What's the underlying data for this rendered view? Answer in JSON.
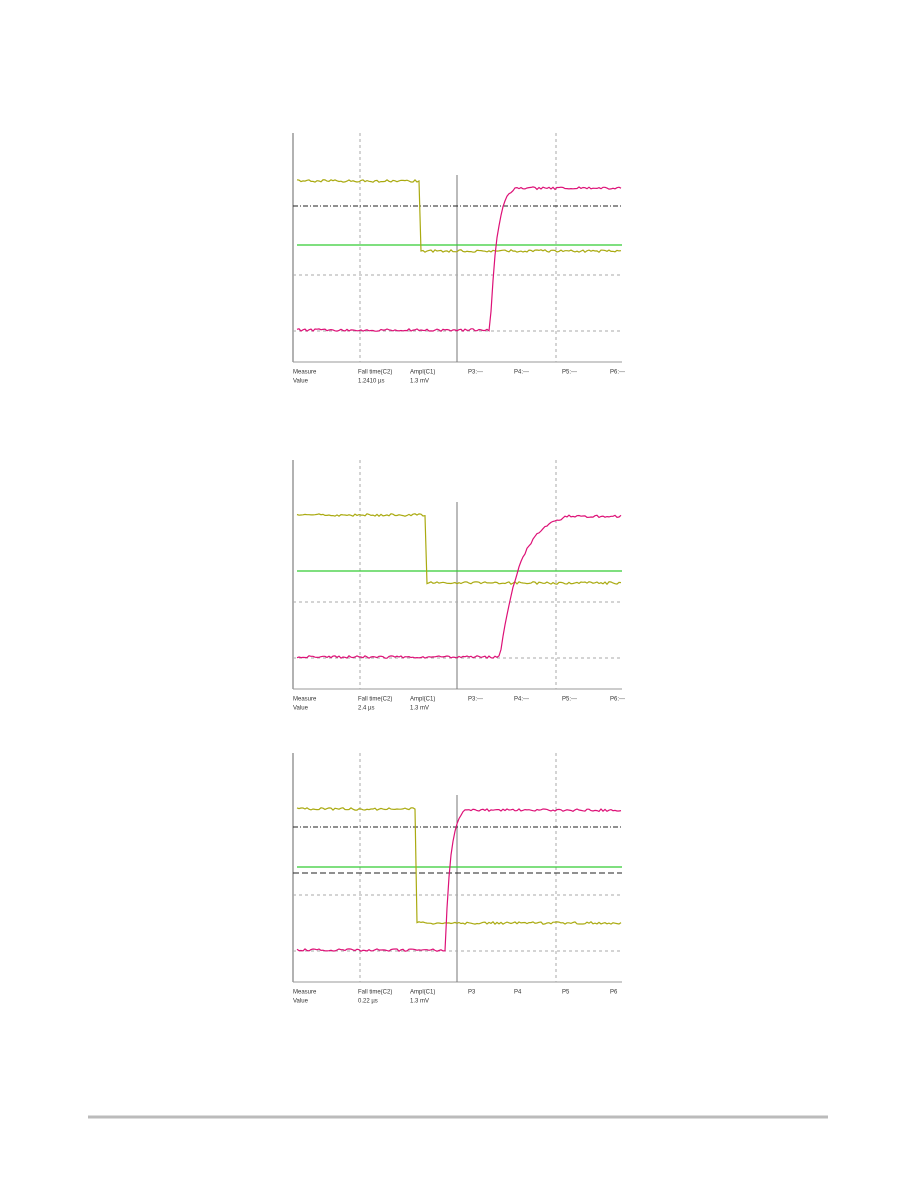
{
  "scopes": [
    {
      "measure": "Measure",
      "value": "Value",
      "columns": [
        "Fall time(C2)",
        "Ampl(C1)",
        "P3:---",
        "P4:---",
        "P5:---",
        "P6:---"
      ],
      "values": [
        "1.2410 µs",
        "1.3 mV"
      ]
    },
    {
      "measure": "Measure",
      "value": "Value",
      "columns": [
        "Fall time(C2)",
        "Ampl(C1)",
        "P3:---",
        "P4:---",
        "P5:---",
        "P6:---"
      ],
      "values": [
        "2.4 µs",
        "1.3 mV"
      ]
    },
    {
      "measure": "Measure",
      "value": "Value",
      "columns": [
        "Fall time(C2)",
        "Ampl(C1)",
        "P3",
        "P4",
        "P5",
        "P6"
      ],
      "values": [
        "0.22 µs",
        "1.3 mV"
      ]
    }
  ]
}
